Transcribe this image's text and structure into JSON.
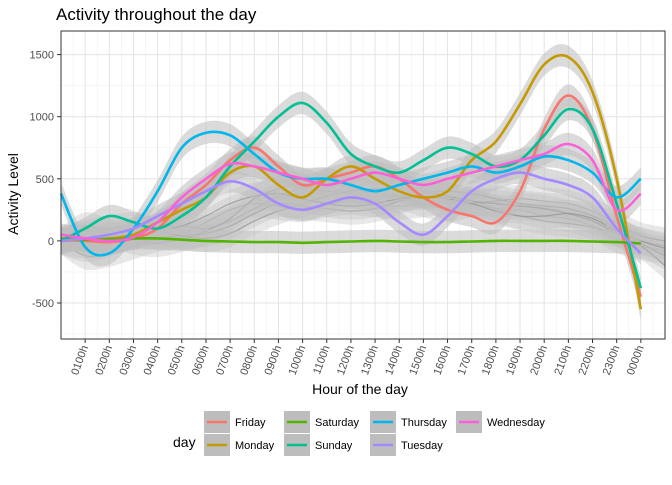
{
  "chart_data": {
    "type": "line",
    "title": "Activity throughout the day",
    "xlabel": "Hour of the day",
    "ylabel": "Activity Level",
    "ylim": [
      -790,
      1690
    ],
    "y_ticks": [
      -500,
      0,
      500,
      1000,
      1500
    ],
    "x_tick_labels": [
      "0100h",
      "0200h",
      "0300h",
      "0400h",
      "0500h",
      "0600h",
      "0700h",
      "0800h",
      "0900h",
      "1000h",
      "1100h",
      "1200h",
      "1300h",
      "1400h",
      "1500h",
      "1600h",
      "1700h",
      "1800h",
      "1900h",
      "2000h",
      "2100h",
      "2200h",
      "2300h",
      "0000h"
    ],
    "x_range": [
      0,
      25
    ],
    "grid": true,
    "smoothed_with_confidence_band": true,
    "band_color": "#bdbdbd",
    "legend": {
      "title": "day",
      "position": "bottom",
      "entries": [
        "Friday",
        "Monday",
        "Saturday",
        "Sunday",
        "Thursday",
        "Tuesday",
        "Wednesday"
      ]
    },
    "colors": {
      "Friday": "#F8766D",
      "Monday": "#C49A00",
      "Saturday": "#53B400",
      "Sunday": "#00C094",
      "Thursday": "#00B6EB",
      "Tuesday": "#A58AFF",
      "Wednesday": "#FB61D7"
    },
    "background_lines": {
      "description": "many faint grey smoothed curves behind the highlighted series",
      "series": [
        [
          0,
          40,
          80,
          60,
          40,
          60,
          150,
          250,
          300,
          280,
          260,
          300,
          320,
          300,
          280,
          300,
          320,
          300,
          260,
          250,
          200,
          180,
          120,
          10,
          -40,
          -80
        ],
        [
          0,
          -60,
          -20,
          60,
          100,
          120,
          100,
          160,
          260,
          360,
          420,
          400,
          380,
          360,
          360,
          380,
          360,
          320,
          260,
          200,
          160,
          140,
          110,
          60,
          0,
          -40
        ],
        [
          0,
          120,
          60,
          0,
          -20,
          20,
          80,
          180,
          340,
          420,
          460,
          480,
          420,
          380,
          360,
          300,
          260,
          300,
          320,
          340,
          320,
          300,
          240,
          140,
          40,
          0
        ],
        [
          0,
          -120,
          -100,
          -40,
          20,
          40,
          60,
          120,
          220,
          300,
          280,
          260,
          240,
          260,
          320,
          380,
          400,
          380,
          340,
          300,
          280,
          260,
          200,
          100,
          -20,
          -120
        ],
        [
          0,
          60,
          100,
          120,
          80,
          40,
          20,
          60,
          160,
          240,
          300,
          360,
          400,
          420,
          420,
          400,
          360,
          320,
          300,
          280,
          260,
          220,
          160,
          60,
          -40,
          -200
        ],
        [
          0,
          -30,
          -10,
          40,
          80,
          120,
          200,
          300,
          360,
          380,
          340,
          300,
          280,
          300,
          340,
          360,
          340,
          300,
          240,
          200,
          200,
          220,
          180,
          80,
          0,
          -60
        ]
      ]
    },
    "series": [
      {
        "name": "Friday",
        "x": [
          0,
          1,
          2,
          3,
          4,
          5,
          6,
          7,
          8,
          9,
          10,
          11,
          12,
          13,
          14,
          15,
          16,
          17,
          18,
          19,
          20,
          21,
          22,
          23,
          24
        ],
        "values": [
          10,
          0,
          -10,
          20,
          100,
          300,
          450,
          650,
          750,
          600,
          450,
          500,
          550,
          600,
          500,
          350,
          250,
          200,
          150,
          400,
          900,
          1170,
          900,
          200,
          -450
        ]
      },
      {
        "name": "Monday",
        "x": [
          0,
          1,
          2,
          3,
          4,
          5,
          6,
          7,
          8,
          9,
          10,
          11,
          12,
          13,
          14,
          15,
          16,
          17,
          18,
          19,
          20,
          21,
          22,
          23,
          24
        ],
        "values": [
          0,
          10,
          20,
          50,
          150,
          250,
          350,
          550,
          600,
          450,
          350,
          500,
          600,
          500,
          400,
          350,
          400,
          650,
          800,
          1100,
          1420,
          1480,
          1200,
          500,
          -550
        ]
      },
      {
        "name": "Saturday",
        "x": [
          0,
          1,
          2,
          3,
          4,
          5,
          6,
          7,
          8,
          9,
          10,
          11,
          12,
          13,
          14,
          15,
          16,
          17,
          18,
          19,
          20,
          21,
          22,
          23,
          24
        ],
        "values": [
          20,
          10,
          15,
          20,
          20,
          10,
          0,
          -5,
          -10,
          -10,
          -15,
          -10,
          -5,
          0,
          -5,
          -10,
          -10,
          -5,
          0,
          0,
          0,
          0,
          -5,
          -10,
          -20
        ]
      },
      {
        "name": "Sunday",
        "x": [
          0,
          1,
          2,
          3,
          4,
          5,
          6,
          7,
          8,
          9,
          10,
          11,
          12,
          13,
          14,
          15,
          16,
          17,
          18,
          19,
          20,
          21,
          22,
          23,
          24
        ],
        "values": [
          0,
          100,
          200,
          150,
          100,
          200,
          350,
          600,
          800,
          1000,
          1110,
          950,
          700,
          600,
          550,
          650,
          750,
          700,
          600,
          650,
          850,
          1060,
          900,
          300,
          -380
        ]
      },
      {
        "name": "Thursday",
        "x": [
          0,
          1,
          2,
          3,
          4,
          5,
          6,
          7,
          8,
          9,
          10,
          11,
          12,
          13,
          14,
          15,
          16,
          17,
          18,
          19,
          20,
          21,
          22,
          23,
          24
        ],
        "values": [
          380,
          -50,
          -100,
          100,
          400,
          750,
          870,
          850,
          700,
          550,
          500,
          500,
          450,
          400,
          450,
          500,
          550,
          600,
          550,
          600,
          680,
          650,
          550,
          350,
          500
        ]
      },
      {
        "name": "Tuesday",
        "x": [
          0,
          1,
          2,
          3,
          4,
          5,
          6,
          7,
          8,
          9,
          10,
          11,
          12,
          13,
          14,
          15,
          16,
          17,
          18,
          19,
          20,
          21,
          22,
          23,
          24
        ],
        "values": [
          0,
          20,
          50,
          100,
          200,
          300,
          400,
          480,
          420,
          300,
          250,
          300,
          350,
          300,
          150,
          50,
          200,
          400,
          500,
          550,
          500,
          450,
          350,
          100,
          -100
        ]
      },
      {
        "name": "Wednesday",
        "x": [
          0,
          1,
          2,
          3,
          4,
          5,
          6,
          7,
          8,
          9,
          10,
          11,
          12,
          13,
          14,
          15,
          16,
          17,
          18,
          19,
          20,
          21,
          22,
          23,
          24
        ],
        "values": [
          50,
          20,
          0,
          30,
          150,
          350,
          500,
          620,
          600,
          550,
          500,
          450,
          500,
          550,
          500,
          450,
          500,
          550,
          600,
          650,
          700,
          780,
          650,
          250,
          380
        ]
      }
    ]
  }
}
